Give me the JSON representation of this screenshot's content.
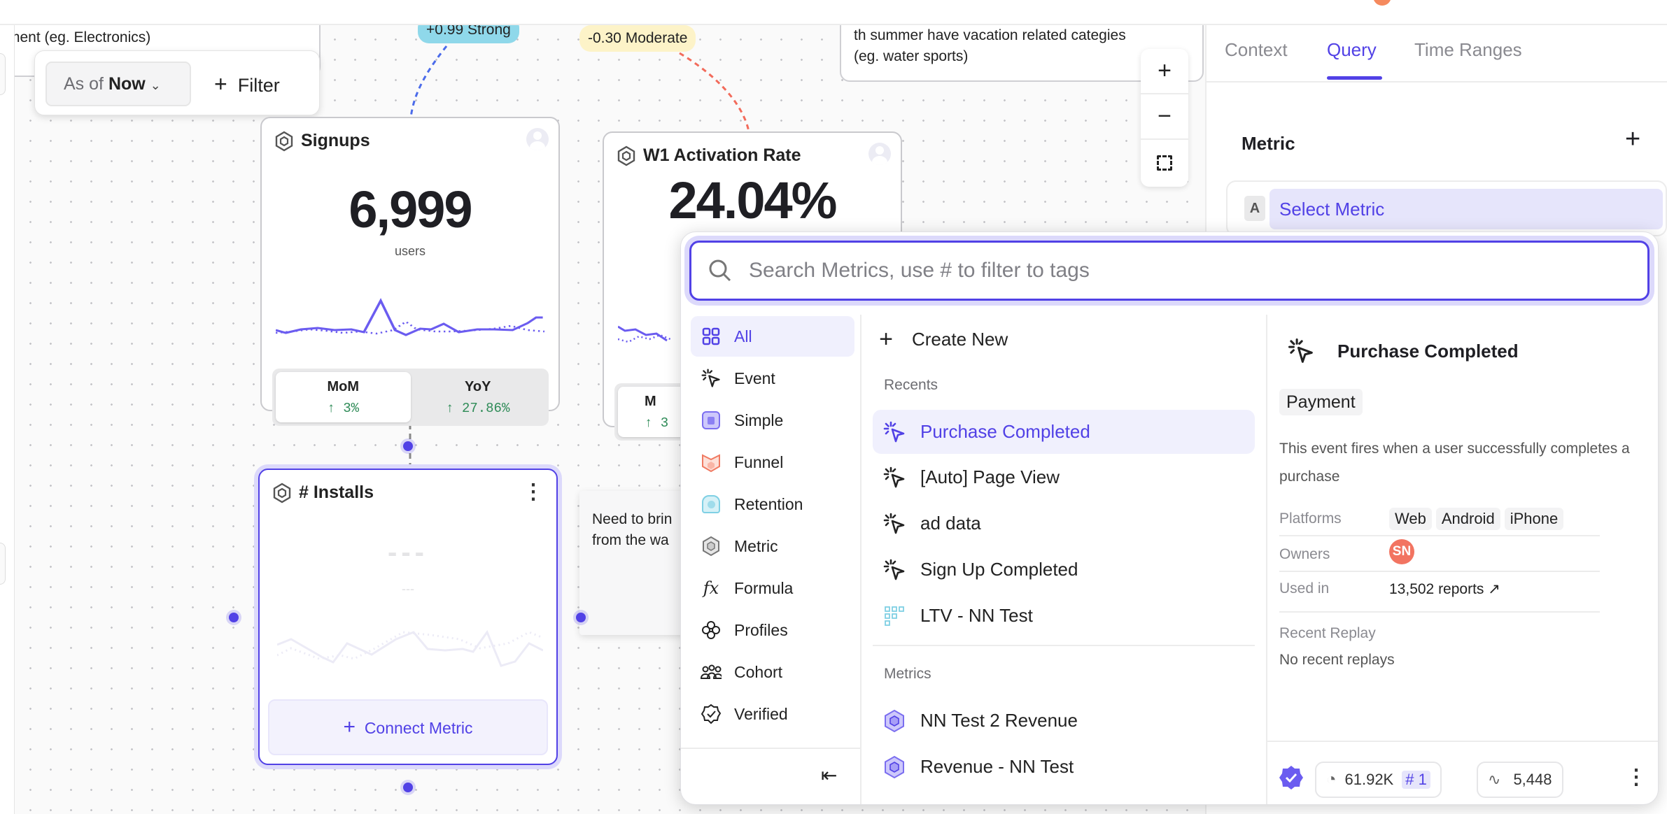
{
  "canvas": {
    "notes": {
      "top_left": "ment  (eg. Electronics)",
      "top_right_line1": "th summer have vacation related categies",
      "top_right_line2": "(eg. water sports)",
      "middle_line1": "Need to brin",
      "middle_line2": "from the wa"
    },
    "filter": {
      "as_of_label": "As of",
      "as_of_value": "Now",
      "filter_label": "Filter"
    },
    "correlations": [
      {
        "label": "+0.99 Strong",
        "color": "#8fd8ea"
      },
      {
        "label": "-0.30 Moderate",
        "color": "#fdf3c8"
      }
    ],
    "cards": {
      "signups": {
        "title": "Signups",
        "value": "6,999",
        "unit": "users",
        "mom_label": "MoM",
        "mom_value": "↑ 3%",
        "yoy_label": "YoY",
        "yoy_value": "↑ 27.86%"
      },
      "activation": {
        "title": "W1 Activation Rate",
        "value": "24.04%",
        "mom_label": "M",
        "mom_value": "↑ 3"
      },
      "installs": {
        "title": "# Installs",
        "value": "---",
        "sub": "---",
        "connect_label": "Connect Metric"
      }
    },
    "zoom": {
      "in": "+",
      "out": "−"
    }
  },
  "right_panel": {
    "tabs": [
      "Context",
      "Query",
      "Time Ranges"
    ],
    "active_tab": "Query",
    "metric_header": "Metric",
    "metric_letter": "A",
    "select_metric": "Select Metric"
  },
  "popup": {
    "search_placeholder": "Search Metrics, use # to filter to tags",
    "categories": [
      "All",
      "Event",
      "Simple",
      "Funnel",
      "Retention",
      "Metric",
      "Formula",
      "Profiles",
      "Cohort",
      "Verified"
    ],
    "create_new": "Create New",
    "recents_label": "Recents",
    "recents": [
      "Purchase Completed",
      "[Auto] Page View",
      "ad data",
      "Sign Up Completed",
      "LTV - NN Test"
    ],
    "metrics_label": "Metrics",
    "metrics": [
      "NN Test 2 Revenue",
      "Revenue - NN Test"
    ],
    "detail": {
      "title": "Purchase Completed",
      "tag": "Payment",
      "description": "This event fires when a user successfully completes a purchase",
      "platforms_label": "Platforms",
      "platforms": [
        "Web",
        "Android",
        "iPhone"
      ],
      "owners_label": "Owners",
      "owner_initials": "SN",
      "used_in_label": "Used in",
      "used_in_value": "13,502 reports ↗",
      "recent_replay_label": "Recent Replay",
      "recent_replay_value": "No recent replays",
      "volume": "61.92K",
      "rank": "# 1",
      "queries": "5,448"
    }
  },
  "colors": {
    "accent": "#5141e6",
    "positive": "#2e8b57",
    "owner": "#f27461"
  }
}
